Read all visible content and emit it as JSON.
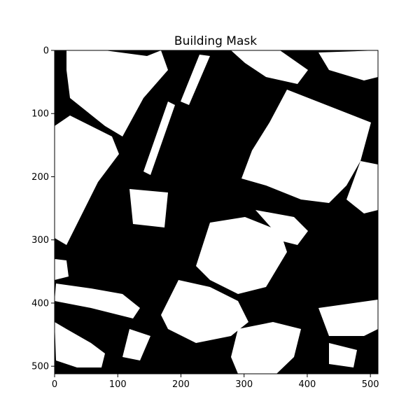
{
  "chart_data": {
    "type": "heatmap",
    "title": "Building Mask",
    "xlabel": "",
    "ylabel": "",
    "xlim": [
      0,
      512
    ],
    "ylim": [
      512,
      0
    ],
    "x_ticks": [
      0,
      100,
      200,
      300,
      400,
      500
    ],
    "y_ticks": [
      0,
      100,
      200,
      300,
      400,
      500
    ],
    "x_tick_labels": [
      "0",
      "100",
      "200",
      "300",
      "400",
      "500"
    ],
    "y_tick_labels": [
      "0",
      "100",
      "200",
      "300",
      "400",
      "500"
    ],
    "colormap": "gray",
    "values_present": [
      0,
      1
    ],
    "colors": {
      "background": "#000000",
      "building": "#ffffff",
      "frame": "#000000"
    },
    "grid": false,
    "legend": "none"
  }
}
